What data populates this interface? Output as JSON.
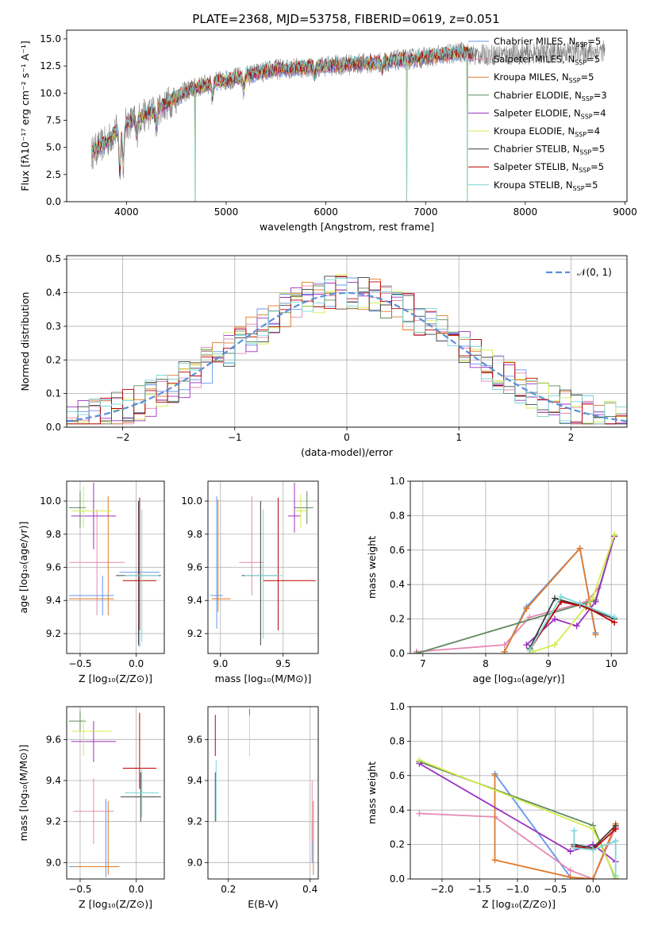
{
  "figure_title": "PLATE=2368, MJD=53758, FIBERID=0619, z=0.051",
  "colors": {
    "chabrier_miles": "#6495ed",
    "salpeter_miles": "#e589b4",
    "kroupa_miles": "#e07b2a",
    "chabrier_elodie": "#5e8a5e",
    "salpeter_elodie": "#9b30c0",
    "kroupa_elodie": "#d4ec4c",
    "chabrier_stelib": "#404040",
    "salpeter_stelib": "#c00000",
    "kroupa_stelib": "#7ed6d6",
    "data": "#808080",
    "normal": "#5b8fd8"
  },
  "legend": [
    {
      "label": "Chabrier MILES, N",
      "sub": "SSP",
      "eq": "=5",
      "color": "#6495ed"
    },
    {
      "label": "Salpeter MILES, N",
      "sub": "SSP",
      "eq": "=5",
      "color": "#e589b4"
    },
    {
      "label": "Kroupa MILES, N",
      "sub": "SSP",
      "eq": "=5",
      "color": "#e07b2a"
    },
    {
      "label": "Chabrier ELODIE, N",
      "sub": "SSP",
      "eq": "=3",
      "color": "#5e8a5e"
    },
    {
      "label": "Salpeter ELODIE, N",
      "sub": "SSP",
      "eq": "=4",
      "color": "#9b30c0"
    },
    {
      "label": "Kroupa ELODIE, N",
      "sub": "SSP",
      "eq": "=4",
      "color": "#d4ec4c"
    },
    {
      "label": "Chabrier STELIB, N",
      "sub": "SSP",
      "eq": "=5",
      "color": "#404040"
    },
    {
      "label": "Salpeter STELIB, N",
      "sub": "SSP",
      "eq": "=5",
      "color": "#c00000"
    },
    {
      "label": "Kroupa STELIB, N",
      "sub": "SSP",
      "eq": "=5",
      "color": "#7ed6d6"
    }
  ],
  "hist_legend": "𝒩(0, 1)",
  "chart_data": [
    {
      "id": "spectrum",
      "type": "line",
      "xlabel": "wavelength [Angstrom, rest frame]",
      "ylabel": "Flux [fλ10⁻¹⁷ erg cm⁻² s⁻¹ A⁻¹]",
      "xlim": [
        3400,
        9020
      ],
      "ylim": [
        0,
        15.8
      ],
      "xticks": [
        4000,
        5000,
        6000,
        7000,
        8000,
        9000
      ],
      "yticks": [
        0.0,
        2.5,
        5.0,
        7.5,
        10.0,
        12.5,
        15.0
      ],
      "grid": false,
      "continuum": {
        "x": [
          3650,
          3800,
          3900,
          4000,
          4200,
          4400,
          4600,
          4800,
          5000,
          5200,
          5500,
          6000,
          6500,
          7000,
          7400,
          7450,
          8000,
          8500,
          8800
        ],
        "y": [
          4.5,
          5.5,
          6.5,
          7.2,
          8.0,
          9.0,
          10.2,
          10.8,
          11.2,
          11.6,
          12.2,
          12.5,
          12.8,
          13.3,
          13.8,
          13.5,
          13.6,
          13.8,
          13.9
        ]
      },
      "absorption_lines": [
        {
          "x": 3934,
          "depth": 4.0
        },
        {
          "x": 3969,
          "depth": 3.5
        },
        {
          "x": 4102,
          "depth": 1.5
        },
        {
          "x": 4300,
          "depth": 1.5
        },
        {
          "x": 4861,
          "depth": 1.2
        },
        {
          "x": 5175,
          "depth": 1.3
        },
        {
          "x": 5890,
          "depth": 1.0
        },
        {
          "x": 6563,
          "depth": 0.8
        }
      ],
      "spikes": [
        {
          "x": 4690,
          "y": 0.0
        },
        {
          "x": 6810,
          "y": 0.0
        },
        {
          "x": 7420,
          "y": 0.0
        }
      ],
      "model_end": 7480
    },
    {
      "id": "residual-hist",
      "type": "histogram",
      "xlabel": "(data-model)/error",
      "ylabel": "Normed distribution",
      "xlim": [
        -2.5,
        2.5
      ],
      "ylim": [
        0,
        0.51
      ],
      "xticks": [
        -2,
        -1,
        0,
        1,
        2
      ],
      "yticks": [
        0.0,
        0.1,
        0.2,
        0.3,
        0.4,
        0.5
      ],
      "grid": true,
      "legend_position": "top-right"
    },
    {
      "id": "age-vs-Z",
      "type": "scatter",
      "xlabel": "Z [log₁₀(Z/Z⊙)]",
      "ylabel": "age  [log₁₀(age/yr)]",
      "xlim": [
        -0.62,
        0.25
      ],
      "ylim": [
        9.08,
        10.12
      ],
      "xticks": [
        -0.5,
        0.0
      ],
      "yticks": [
        9.2,
        9.4,
        9.6,
        9.8,
        10.0
      ],
      "grid": true,
      "points": [
        {
          "m": "chabrier_miles",
          "x": 0.03,
          "y": 9.57,
          "xe": [
            0.18,
            0.18
          ],
          "ye": [
            0.45,
            0.45
          ]
        },
        {
          "m": "salpeter_miles",
          "x": -0.35,
          "y": 9.63,
          "xe": [
            0.25,
            0.25
          ],
          "ye": [
            0.32,
            0.32
          ]
        },
        {
          "m": "kroupa_miles",
          "x": -0.25,
          "y": 9.41,
          "xe": [
            0.35,
            0.05
          ],
          "ye": [
            0.1,
            0.62
          ]
        },
        {
          "m": "chabrier_elodie",
          "x": -0.5,
          "y": 9.96,
          "xe": [
            0.1,
            0.05
          ],
          "ye": [
            0.12,
            0.1
          ]
        },
        {
          "m": "salpeter_elodie",
          "x": -0.38,
          "y": 9.91,
          "xe": [
            0.2,
            0.2
          ],
          "ye": [
            0.2,
            0.2
          ]
        },
        {
          "m": "kroupa_elodie",
          "x": -0.47,
          "y": 9.94,
          "xe": [
            0.1,
            0.25
          ],
          "ye": [
            0.1,
            0.15
          ]
        },
        {
          "m": "chabrier_stelib",
          "x": 0.02,
          "y": 9.55,
          "xe": [
            0.2,
            0.2
          ],
          "ye": [
            0.42,
            0.45
          ]
        },
        {
          "m": "salpeter_stelib",
          "x": 0.03,
          "y": 9.52,
          "xe": [
            0.15,
            0.15
          ],
          "ye": [
            0.3,
            0.5
          ]
        },
        {
          "m": "kroupa_stelib",
          "x": 0.05,
          "y": 9.55,
          "xe": [
            0.15,
            0.15
          ],
          "ye": [
            0.4,
            0.4
          ]
        },
        {
          "m": "chabrier_miles",
          "x": -0.3,
          "y": 9.43,
          "xe": [
            0.3,
            0.1
          ],
          "ye": [
            0.12,
            0.12
          ]
        }
      ]
    },
    {
      "id": "age-vs-mass",
      "type": "scatter",
      "xlabel": "mass [log₁₀(M/M⊙)]",
      "ylabel": "",
      "xlim": [
        8.9,
        9.78
      ],
      "ylim": [
        9.08,
        10.12
      ],
      "xticks": [
        9.0,
        9.5
      ],
      "yticks": [
        9.2,
        9.4,
        9.6,
        9.8,
        10.0
      ],
      "grid": true,
      "points": [
        {
          "m": "chabrier_miles",
          "x": 8.97,
          "y": 9.43,
          "xe": [
            0.05,
            0.05
          ],
          "ye": [
            0.2,
            0.6
          ]
        },
        {
          "m": "salpeter_miles",
          "x": 9.25,
          "y": 9.63,
          "xe": [
            0.1,
            0.1
          ],
          "ye": [
            0.2,
            0.4
          ]
        },
        {
          "m": "kroupa_miles",
          "x": 8.98,
          "y": 9.41,
          "xe": [
            0.05,
            0.1
          ],
          "ye": [
            0.08,
            0.6
          ]
        },
        {
          "m": "chabrier_elodie",
          "x": 9.69,
          "y": 9.96,
          "xe": [
            0.1,
            0.05
          ],
          "ye": [
            0.1,
            0.1
          ]
        },
        {
          "m": "salpeter_elodie",
          "x": 9.59,
          "y": 9.91,
          "xe": [
            0.05,
            0.05
          ],
          "ye": [
            0.1,
            0.2
          ]
        },
        {
          "m": "kroupa_elodie",
          "x": 9.64,
          "y": 9.94,
          "xe": [
            0.05,
            0.05
          ],
          "ye": [
            0.1,
            0.1
          ]
        },
        {
          "m": "chabrier_stelib",
          "x": 9.32,
          "y": 9.55,
          "xe": [
            0.15,
            0.15
          ],
          "ye": [
            0.42,
            0.45
          ]
        },
        {
          "m": "salpeter_stelib",
          "x": 9.46,
          "y": 9.52,
          "xe": [
            0.12,
            0.3
          ],
          "ye": [
            0.3,
            0.5
          ]
        },
        {
          "m": "kroupa_stelib",
          "x": 9.34,
          "y": 9.55,
          "xe": [
            0.15,
            0.15
          ],
          "ye": [
            0.38,
            0.4
          ]
        }
      ]
    },
    {
      "id": "massweight-vs-age",
      "type": "line",
      "xlabel": "age  [log₁₀(age/yr)]",
      "ylabel": "mass weight",
      "xlim": [
        6.8,
        10.25
      ],
      "ylim": [
        0,
        1.0
      ],
      "xticks": [
        7,
        8,
        9,
        10
      ],
      "yticks": [
        0.0,
        0.2,
        0.4,
        0.6,
        0.8,
        1.0
      ],
      "grid": true,
      "series": [
        {
          "m": "chabrier_miles",
          "x": [
            8.3,
            8.65,
            9.5,
            9.75
          ],
          "y": [
            0.01,
            0.27,
            0.61,
            0.12
          ]
        },
        {
          "m": "salpeter_miles",
          "x": [
            6.9,
            8.3,
            8.7,
            9.6,
            9.8
          ],
          "y": [
            0.01,
            0.05,
            0.21,
            0.3,
            0.38
          ]
        },
        {
          "m": "kroupa_miles",
          "x": [
            8.3,
            8.65,
            9.5,
            9.75
          ],
          "y": [
            0.01,
            0.26,
            0.61,
            0.11
          ]
        },
        {
          "m": "chabrier_elodie",
          "x": [
            6.9,
            9.75,
            10.05
          ],
          "y": [
            0.0,
            0.31,
            0.68
          ]
        },
        {
          "m": "salpeter_elodie",
          "x": [
            8.65,
            9.1,
            9.45,
            9.75,
            10.05
          ],
          "y": [
            0.05,
            0.2,
            0.16,
            0.3,
            0.68
          ]
        },
        {
          "m": "kroupa_elodie",
          "x": [
            8.75,
            9.1,
            9.7,
            10.05
          ],
          "y": [
            0.01,
            0.05,
            0.32,
            0.69
          ]
        },
        {
          "m": "chabrier_stelib",
          "x": [
            8.7,
            9.1,
            9.5,
            10.05
          ],
          "y": [
            0.03,
            0.32,
            0.28,
            0.2
          ]
        },
        {
          "m": "salpeter_stelib",
          "x": [
            8.7,
            9.2,
            9.6,
            10.05
          ],
          "y": [
            0.02,
            0.3,
            0.27,
            0.18
          ]
        },
        {
          "m": "kroupa_stelib",
          "x": [
            8.7,
            9.2,
            9.5,
            10.05
          ],
          "y": [
            0.02,
            0.33,
            0.29,
            0.21
          ]
        }
      ]
    },
    {
      "id": "mass-vs-Z",
      "type": "scatter",
      "xlabel": "Z [log₁₀(Z/Z⊙)]",
      "ylabel": "mass [log₁₀(M/M⊙)]",
      "xlim": [
        -0.62,
        0.25
      ],
      "ylim": [
        8.92,
        9.76
      ],
      "xticks": [
        -0.5,
        0.0
      ],
      "yticks": [
        9.0,
        9.2,
        9.4,
        9.6
      ],
      "grid": true,
      "points": [
        {
          "m": "chabrier_miles",
          "x": -0.27,
          "y": 8.98,
          "xe": [
            0.33,
            0.05
          ],
          "ye": [
            0.05,
            0.33
          ]
        },
        {
          "m": "salpeter_miles",
          "x": -0.38,
          "y": 9.25,
          "xe": [
            0.18,
            0.18
          ],
          "ye": [
            0.16,
            0.16
          ]
        },
        {
          "m": "kroupa_miles",
          "x": -0.25,
          "y": 8.98,
          "xe": [
            0.3,
            0.1
          ],
          "ye": [
            0.04,
            0.32
          ]
        },
        {
          "m": "chabrier_elodie",
          "x": -0.5,
          "y": 9.69,
          "xe": [
            0.1,
            0.05
          ],
          "ye": [
            0.05,
            0.05
          ]
        },
        {
          "m": "salpeter_elodie",
          "x": -0.38,
          "y": 9.59,
          "xe": [
            0.2,
            0.2
          ],
          "ye": [
            0.1,
            0.1
          ]
        },
        {
          "m": "kroupa_elodie",
          "x": -0.47,
          "y": 9.64,
          "xe": [
            0.1,
            0.25
          ],
          "ye": [
            0.12,
            0.06
          ]
        },
        {
          "m": "chabrier_stelib",
          "x": 0.04,
          "y": 9.32,
          "xe": [
            0.18,
            0.18
          ],
          "ye": [
            0.12,
            0.12
          ]
        },
        {
          "m": "salpeter_stelib",
          "x": 0.03,
          "y": 9.46,
          "xe": [
            0.15,
            0.15
          ],
          "ye": [
            0.1,
            0.27
          ]
        },
        {
          "m": "kroupa_stelib",
          "x": 0.05,
          "y": 9.34,
          "xe": [
            0.15,
            0.15
          ],
          "ye": [
            0.12,
            0.12
          ]
        }
      ]
    },
    {
      "id": "mass-vs-ebv",
      "type": "scatter",
      "xlabel": "E(B-V)",
      "ylabel": "",
      "xlim": [
        0.15,
        0.42
      ],
      "ylim": [
        8.92,
        9.76
      ],
      "xticks": [
        0.2,
        0.4
      ],
      "yticks": [
        9.0,
        9.2,
        9.4,
        9.6
      ],
      "grid": true,
      "points": [
        {
          "m": "chabrier_miles",
          "x": 0.405,
          "y": 9.1,
          "xe": [
            0,
            0
          ],
          "ye": [
            0.1,
            0.1
          ]
        },
        {
          "m": "salpeter_miles",
          "x": 0.405,
          "y": 9.25,
          "xe": [
            0,
            0
          ],
          "ye": [
            0.15,
            0.15
          ]
        },
        {
          "m": "kroupa_miles",
          "x": 0.408,
          "y": 9.12,
          "xe": [
            0,
            0
          ],
          "ye": [
            0.18,
            0.18
          ]
        },
        {
          "m": "chabrier_elodie",
          "x": 0.252,
          "y": 9.65,
          "xe": [
            0,
            0
          ],
          "ye": [
            0.1,
            0.1
          ]
        },
        {
          "m": "salpeter_elodie",
          "x": 0.252,
          "y": 9.6,
          "xe": [
            0,
            0
          ],
          "ye": [
            0.08,
            0.08
          ]
        },
        {
          "m": "kroupa_elodie",
          "x": 0.252,
          "y": 9.62,
          "xe": [
            0,
            0
          ],
          "ye": [
            0.1,
            0.1
          ]
        },
        {
          "m": "chabrier_stelib",
          "x": 0.168,
          "y": 9.32,
          "xe": [
            0,
            0
          ],
          "ye": [
            0.12,
            0.12
          ]
        },
        {
          "m": "salpeter_stelib",
          "x": 0.168,
          "y": 9.62,
          "xe": [
            0,
            0
          ],
          "ye": [
            0.1,
            0.1
          ]
        },
        {
          "m": "kroupa_stelib",
          "x": 0.17,
          "y": 9.35,
          "xe": [
            0,
            0
          ],
          "ye": [
            0.15,
            0.15
          ]
        }
      ]
    },
    {
      "id": "massweight-vs-Z",
      "type": "line",
      "xlabel": "Z [log₁₀(Z/Z⊙)]",
      "ylabel": "mass weight",
      "xlim": [
        -2.42,
        0.45
      ],
      "ylim": [
        0,
        1.0
      ],
      "xticks": [
        -2.0,
        -1.5,
        -1.0,
        -0.5,
        0.0
      ],
      "yticks": [
        0.0,
        0.2,
        0.4,
        0.6,
        0.8,
        1.0
      ],
      "grid": true,
      "series": [
        {
          "m": "chabrier_miles",
          "x": [
            -1.3,
            -0.3,
            0.0,
            0.3
          ],
          "y": [
            0.61,
            0.01,
            0.0,
            0.3
          ]
        },
        {
          "m": "salpeter_miles",
          "x": [
            -2.3,
            -1.3,
            -0.3,
            0.0,
            0.3
          ],
          "y": [
            0.38,
            0.36,
            0.05,
            0.0,
            0.3
          ]
        },
        {
          "m": "kroupa_miles",
          "x": [
            -1.3,
            -1.3,
            -0.3,
            0.0,
            0.3
          ],
          "y": [
            0.6,
            0.11,
            0.01,
            0.0,
            0.32
          ]
        },
        {
          "m": "chabrier_elodie",
          "x": [
            -2.3,
            0.0,
            0.3
          ],
          "y": [
            0.68,
            0.31,
            0.0
          ]
        },
        {
          "m": "salpeter_elodie",
          "x": [
            -2.3,
            -0.3,
            0.0,
            0.3
          ],
          "y": [
            0.67,
            0.16,
            0.2,
            0.1
          ]
        },
        {
          "m": "kroupa_elodie",
          "x": [
            -2.3,
            0.0,
            0.3
          ],
          "y": [
            0.69,
            0.29,
            0.01
          ]
        },
        {
          "m": "chabrier_stelib",
          "x": [
            -0.25,
            0.0,
            0.3
          ],
          "y": [
            0.2,
            0.18,
            0.31
          ]
        },
        {
          "m": "salpeter_stelib",
          "x": [
            -0.25,
            0.0,
            0.3
          ],
          "y": [
            0.19,
            0.17,
            0.29
          ]
        },
        {
          "m": "kroupa_stelib",
          "x": [
            -0.25,
            -0.25,
            0.0,
            0.3,
            0.3
          ],
          "y": [
            0.28,
            0.18,
            0.17,
            0.22,
            0.02
          ]
        }
      ]
    }
  ]
}
